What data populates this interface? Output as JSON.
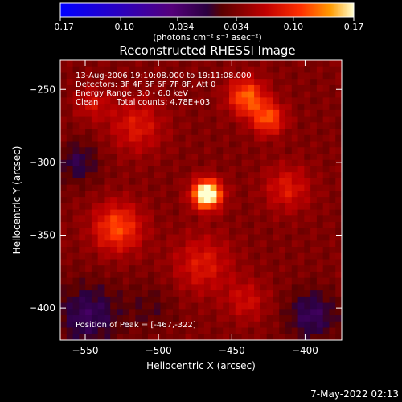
{
  "chart_data": {
    "type": "heatmap",
    "title": "Reconstructed RHESSI Image",
    "xlabel": "Heliocentric X (arcsec)",
    "ylabel": "Heliocentric Y (arcsec)",
    "xlim": [
      -567,
      -375
    ],
    "ylim": [
      -422,
      -230
    ],
    "x_ticks": [
      -550,
      -500,
      -450,
      -400
    ],
    "y_ticks": [
      -250,
      -300,
      -350,
      -400
    ],
    "colorbar": {
      "range": [
        -0.17,
        0.17
      ],
      "ticks": [
        -0.17,
        -0.1,
        -0.034,
        0.034,
        0.1,
        0.17
      ],
      "tick_labels": [
        "-0.17",
        "-0.10",
        "-0.034",
        "0.034",
        "0.10",
        "0.17"
      ],
      "unit_label": "(photons cm⁻² s⁻¹ asec⁻²)"
    },
    "annotations": [
      "13-Aug-2006 19:10:08.000 to 19:11:08.000",
      "Detectors: 3F 4F 5F 6F 7F 8F, Att 0",
      "Energy Range: 3.0 - 6.0 keV",
      "Clean",
      "Total counts: 4.78E+03"
    ],
    "peak_label": "Position of Peak = [-467,-322]",
    "peak": {
      "x": -467,
      "y": -322,
      "value": 0.17
    },
    "sources": [
      {
        "x": -467,
        "y": -322,
        "sigma": 7,
        "amp": 0.17
      },
      {
        "x": -440,
        "y": -255,
        "sigma": 9,
        "amp": 0.09
      },
      {
        "x": -425,
        "y": -270,
        "sigma": 8,
        "amp": 0.08
      },
      {
        "x": -528,
        "y": -345,
        "sigma": 12,
        "amp": 0.08
      },
      {
        "x": -515,
        "y": -275,
        "sigma": 13,
        "amp": 0.05
      },
      {
        "x": -412,
        "y": -318,
        "sigma": 11,
        "amp": 0.05
      },
      {
        "x": -470,
        "y": -370,
        "sigma": 14,
        "amp": 0.05
      },
      {
        "x": -440,
        "y": -395,
        "sigma": 10,
        "amp": 0.04
      },
      {
        "x": -545,
        "y": -260,
        "sigma": 8,
        "amp": 0.04
      },
      {
        "x": -548,
        "y": -405,
        "sigma": 15,
        "amp": -0.05
      },
      {
        "x": -395,
        "y": -405,
        "sigma": 12,
        "amp": -0.05
      },
      {
        "x": -555,
        "y": -300,
        "sigma": 10,
        "amp": -0.04
      },
      {
        "x": -505,
        "y": -400,
        "sigma": 12,
        "amp": -0.02
      }
    ]
  },
  "footer": {
    "timestamp": "7-May-2022 02:13"
  }
}
